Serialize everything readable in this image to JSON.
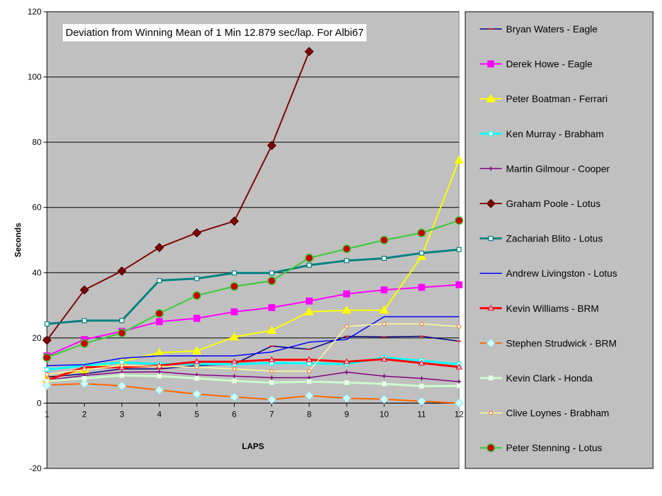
{
  "chart_data": {
    "type": "line",
    "title": "Deviation from Winning Mean of 1 Min 12.879 sec/lap. For Albi67",
    "xlabel": "LAPS",
    "ylabel": "Seconds",
    "x": [
      1,
      2,
      3,
      4,
      5,
      6,
      7,
      8,
      9,
      10,
      11,
      12
    ],
    "xlim": [
      1,
      12
    ],
    "ylim": [
      -20,
      120
    ],
    "yticks": [
      -20,
      0,
      20,
      40,
      60,
      80,
      100,
      120
    ],
    "grid": "horizontal",
    "legend_position": "right",
    "plot_background": "#c0c0c0",
    "series": [
      {
        "name": "Bryan Waters - Eagle",
        "color": "#000080",
        "marker": "dash",
        "values": [
          8.0,
          9.0,
          10.5,
          10.5,
          11.5,
          12.0,
          17.5,
          16.5,
          20.5,
          20.3,
          20.5,
          19.0
        ]
      },
      {
        "name": "Derek Howe - Eagle",
        "color": "#ff00ff",
        "marker": "square-filled",
        "values": [
          14.5,
          19.5,
          22.0,
          25.0,
          26.0,
          28.0,
          29.3,
          31.3,
          33.5,
          34.7,
          35.5,
          36.3
        ]
      },
      {
        "name": "Peter Boatman - Ferrari",
        "color": "#ffff00",
        "marker": "triangle",
        "values": [
          7.3,
          10.3,
          12.8,
          15.5,
          16.0,
          20.3,
          22.3,
          28.0,
          28.5,
          28.5,
          45.0,
          74.5
        ]
      },
      {
        "name": "Ken Murray - Brabham",
        "color": "#00ffff",
        "marker": "square-open",
        "values": [
          10.3,
          11.5,
          12.5,
          12.0,
          12.0,
          12.0,
          12.3,
          12.2,
          12.0,
          14.0,
          13.0,
          11.9
        ]
      },
      {
        "name": "Martin Gilmour - Cooper",
        "color": "#800080",
        "marker": "star",
        "values": [
          7.0,
          8.5,
          9.5,
          9.6,
          8.7,
          8.3,
          7.8,
          7.8,
          9.5,
          8.3,
          7.6,
          6.6
        ]
      },
      {
        "name": "Graham Poole - Lotus",
        "color": "#800000",
        "marker": "diamond",
        "values": [
          19.3,
          34.7,
          40.5,
          47.7,
          52.2,
          55.8,
          79.0,
          107.8,
          null,
          null,
          null,
          null
        ]
      },
      {
        "name": "Zachariah Blito - Lotus",
        "color": "#008080",
        "marker": "square-open",
        "values": [
          24.3,
          25.3,
          25.3,
          37.6,
          38.2,
          39.9,
          39.9,
          42.3,
          43.7,
          44.4,
          46.0,
          47.1
        ]
      },
      {
        "name": "Andrew Livingston - Lotus",
        "color": "#0000ff",
        "marker": "none",
        "values": [
          11.5,
          11.8,
          13.8,
          14.5,
          14.5,
          14.5,
          15.7,
          18.7,
          19.5,
          26.5,
          26.5,
          26.5
        ]
      },
      {
        "name": "Kevin Williams - BRM",
        "color": "#ff0000",
        "marker": "triangle-open",
        "values": [
          7.0,
          11.0,
          11.0,
          11.5,
          12.7,
          12.7,
          13.3,
          13.3,
          12.7,
          13.5,
          12.3,
          11.1
        ]
      },
      {
        "name": "Stephen Strudwick - BRM",
        "color": "#ff6600",
        "marker": "diamond-light",
        "values": [
          5.5,
          6.0,
          5.3,
          4.0,
          2.8,
          1.9,
          1.1,
          2.3,
          1.5,
          1.2,
          0.6,
          0.0
        ]
      },
      {
        "name": "Kevin Clark - Honda",
        "color": "#ccffcc",
        "marker": "square-open",
        "values": [
          6.8,
          7.6,
          8.5,
          8.3,
          7.6,
          6.8,
          6.3,
          6.6,
          6.3,
          5.9,
          5.2,
          5.3
        ]
      },
      {
        "name": "Clive Loynes - Brabham",
        "color": "#ffff99",
        "marker": "circle-open",
        "values": [
          8.8,
          10.3,
          11.5,
          11.3,
          11.0,
          10.5,
          9.8,
          9.8,
          23.5,
          24.3,
          24.3,
          23.5
        ]
      },
      {
        "name": "Peter Stenning - Lotus",
        "color": "#33cc33",
        "marker": "circle-red",
        "values": [
          14.0,
          18.3,
          21.5,
          27.5,
          33.0,
          35.8,
          37.5,
          44.5,
          47.3,
          50.0,
          52.2,
          56.0
        ]
      }
    ]
  }
}
